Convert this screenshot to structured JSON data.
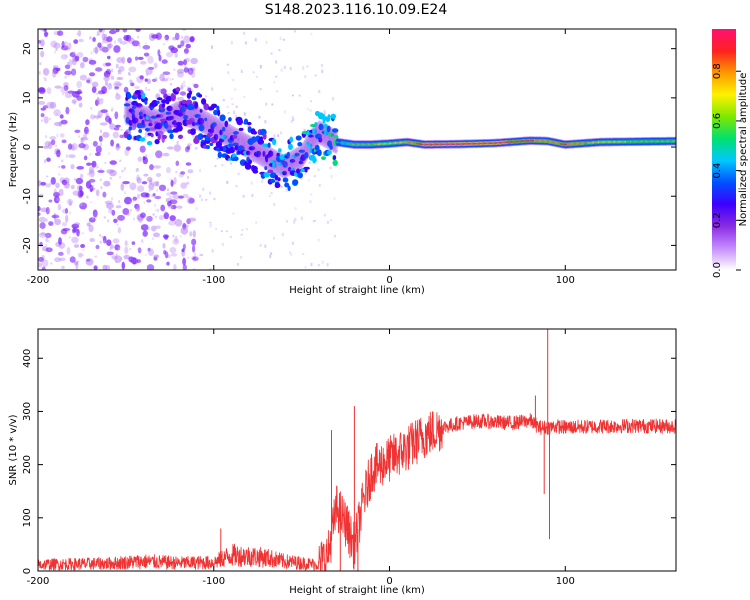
{
  "title": "S148.2023.116.10.09.E24",
  "chart_data": [
    {
      "type": "heatmap",
      "xlabel": "Height of straight line (km)",
      "ylabel": "Frequency (Hz)",
      "xlim": [
        -200,
        163
      ],
      "ylim": [
        -25,
        24
      ],
      "xticks": [
        -200,
        -100,
        0,
        100
      ],
      "yticks": [
        -20,
        -10,
        0,
        10,
        20
      ],
      "colorbar": {
        "label": "Normalized spectral amplitude",
        "ticks": [
          0.0,
          0.2,
          0.4,
          0.6,
          0.8
        ],
        "tick_labels": [
          "0.0",
          "0.2",
          "0.4",
          "0.6",
          "0.8"
        ],
        "range": [
          0,
          0.97
        ],
        "colors": [
          "#ffffff",
          "#c58cff",
          "#8a2be2",
          "#3c00ff",
          "#0050ff",
          "#00c8ff",
          "#00e070",
          "#7ee800",
          "#fff200",
          "#ff9800",
          "#ff2020",
          "#ff1070"
        ]
      },
      "scatter_noise_region": {
        "x": [
          -200,
          -110
        ],
        "y": [
          -25,
          24
        ]
      },
      "stripe_region": {
        "x": [
          -200,
          -30
        ],
        "y": [
          -25,
          24
        ]
      },
      "ridge": {
        "x": [
          -150,
          -140,
          -130,
          -120,
          -110,
          -100,
          -90,
          -80,
          -70,
          -60,
          -50,
          -45,
          -40,
          -35,
          -30,
          -20,
          -10,
          0,
          10,
          20,
          40,
          60,
          80,
          90,
          100,
          120,
          140,
          163
        ],
        "y": [
          7,
          6,
          5,
          7,
          6,
          4,
          2,
          0,
          -2,
          -4,
          -2,
          1,
          3,
          2,
          1,
          0.5,
          0.5,
          0.7,
          1,
          0.5,
          0.6,
          0.8,
          1.3,
          1.2,
          0.5,
          1.0,
          1.1,
          1.2
        ],
        "amplitude": [
          0.3,
          0.35,
          0.3,
          0.28,
          0.3,
          0.35,
          0.35,
          0.35,
          0.35,
          0.35,
          0.4,
          0.45,
          0.45,
          0.45,
          0.5,
          0.6,
          0.65,
          0.7,
          0.75,
          0.9,
          0.95,
          0.9,
          0.85,
          0.8,
          0.85,
          0.7,
          0.65,
          0.65
        ]
      }
    },
    {
      "type": "line",
      "xlabel": "Height of straight line (km)",
      "ylabel": "SNR (10 * v/v)",
      "xlim": [
        -200,
        163
      ],
      "ylim": [
        0,
        455
      ],
      "xticks": [
        -200,
        -100,
        0,
        100
      ],
      "yticks": [
        0,
        100,
        200,
        300,
        400
      ],
      "series": [
        {
          "color": "#f03232",
          "baseline": {
            "x": [
              -200,
              -160,
              -140,
              -120,
              -100,
              -90,
              -80,
              -70,
              -60,
              -50,
              -40,
              -35,
              -30,
              -25,
              -20,
              -15,
              -10,
              -5,
              0,
              10,
              20,
              30,
              40,
              50,
              60,
              70,
              80,
              85,
              90,
              95,
              100,
              120,
              140,
              163
            ],
            "y": [
              12,
              14,
              18,
              15,
              16,
              30,
              28,
              25,
              18,
              15,
              12,
              30,
              120,
              90,
              45,
              130,
              190,
              200,
              210,
              230,
              255,
              270,
              278,
              282,
              280,
              278,
              283,
              270,
              270,
              272,
              270,
              272,
              273,
              272
            ]
          },
          "spikes": [
            {
              "x": -96,
              "y": 80
            },
            {
              "x": -33,
              "y": 265
            },
            {
              "x": -28,
              "y": 0
            },
            {
              "x": -20,
              "y": 310
            },
            {
              "x": -18,
              "y": 0
            },
            {
              "x": 83,
              "y": 330
            },
            {
              "x": 90,
              "y": 455
            },
            {
              "x": 91,
              "y": 60
            },
            {
              "x": 88,
              "y": 145
            }
          ]
        }
      ]
    }
  ]
}
